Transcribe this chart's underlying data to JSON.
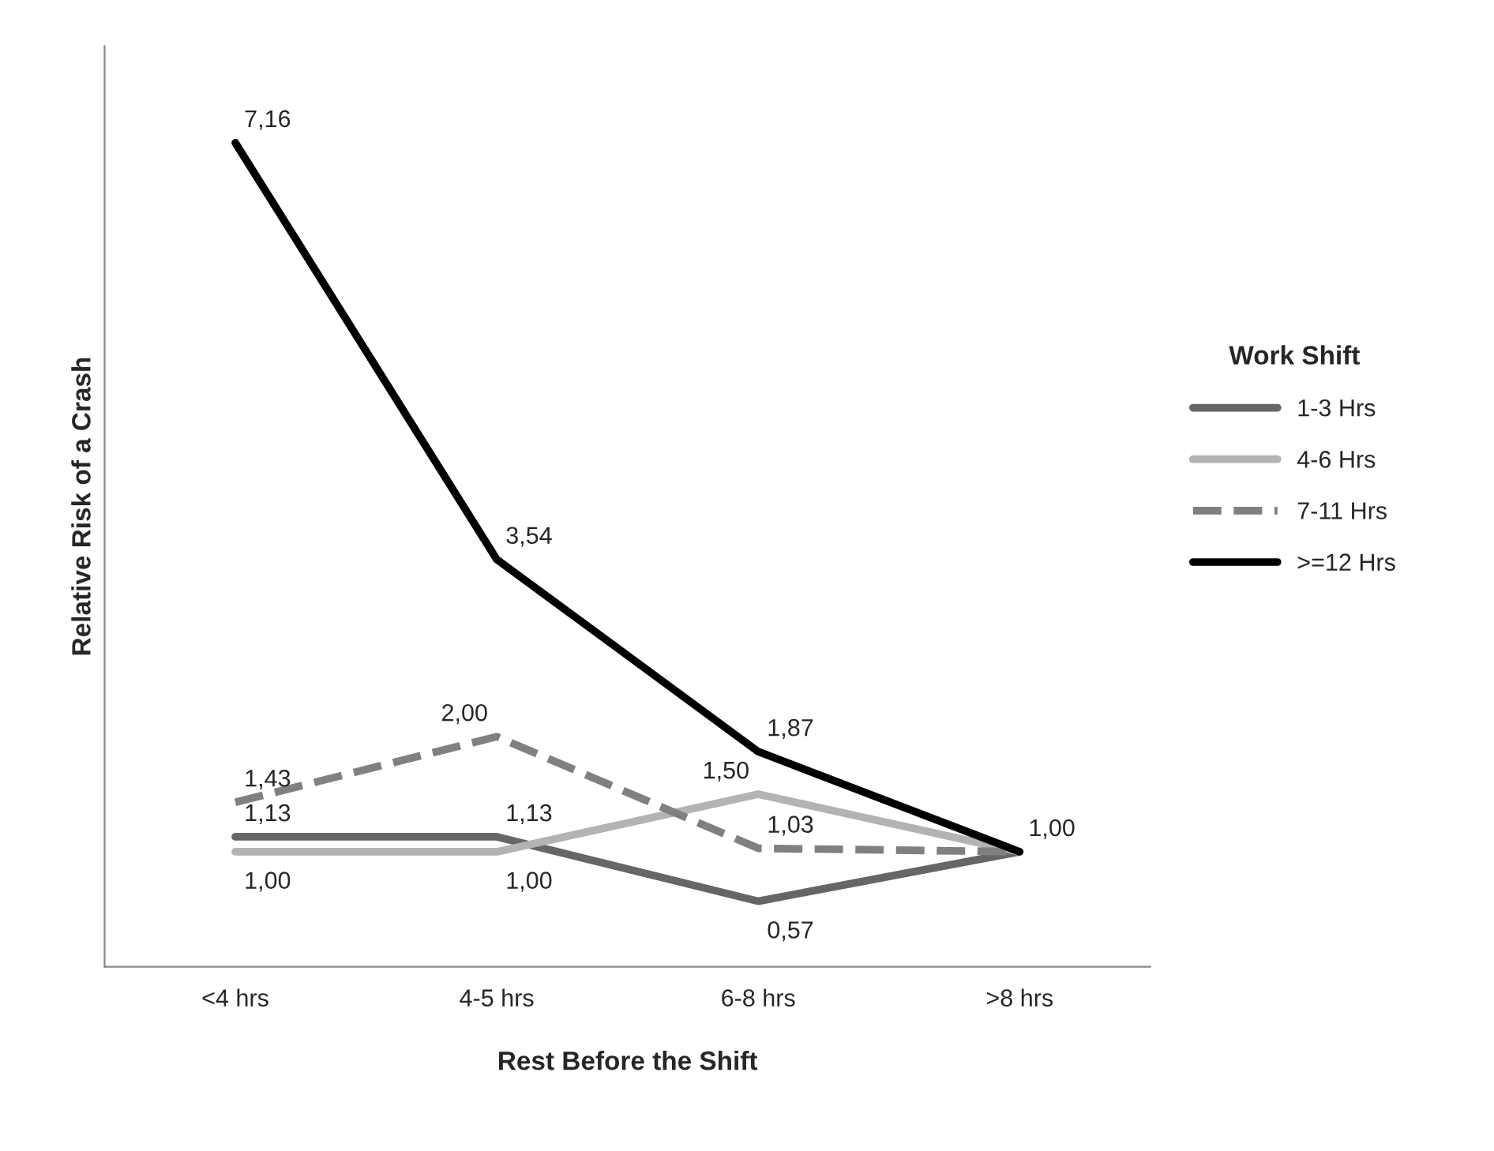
{
  "chart_data": {
    "type": "line",
    "xlabel": "Rest Before the Shift",
    "ylabel": "Relative Risk of a Crash",
    "legend_title": "Work Shift",
    "legend": "right",
    "tick_labels": "x",
    "ylim": [
      0,
      8
    ],
    "categories": [
      "<4 hrs",
      "4-5 hrs",
      "6-8 hrs",
      ">8 hrs"
    ],
    "series": [
      {
        "name": "1-3 Hrs",
        "color": "#666666",
        "line_style": "solid",
        "values": [
          1.13,
          1.13,
          0.57,
          1.0
        ],
        "value_labels": [
          "1,13",
          "1,13",
          "0,57",
          null
        ]
      },
      {
        "name": "4-6 Hrs",
        "color": "#b3b3b3",
        "line_style": "solid",
        "values": [
          1.0,
          1.0,
          1.5,
          1.0
        ],
        "value_labels": [
          "1,00",
          "1,00",
          "1,50",
          null
        ]
      },
      {
        "name": "7-11 Hrs",
        "color": "#808080",
        "line_style": "dashed",
        "values": [
          1.43,
          2.0,
          1.03,
          1.0
        ],
        "value_labels": [
          "1,43",
          "2,00",
          "1,03",
          null
        ]
      },
      {
        "name": ">=12 Hrs",
        "color": "#000000",
        "line_style": "solid",
        "values": [
          7.16,
          3.54,
          1.87,
          1.0
        ],
        "value_labels": [
          "7,16",
          "3,54",
          "1,87",
          "1,00"
        ]
      }
    ]
  }
}
